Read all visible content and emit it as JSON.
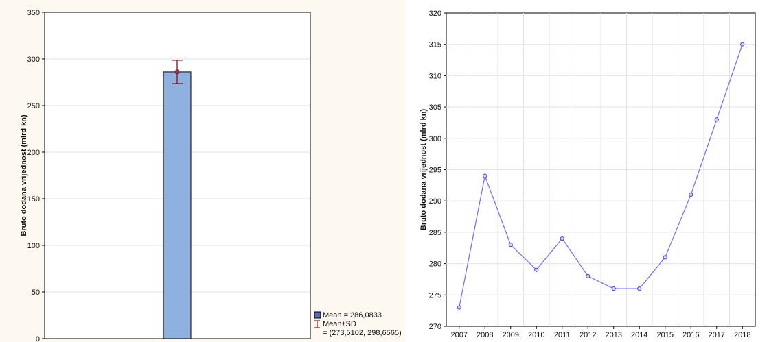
{
  "chart_data": [
    {
      "type": "bar",
      "categories": [
        ""
      ],
      "values": [
        286.0833
      ],
      "error_bars": [
        {
          "low": 273.5102,
          "high": 298.6565
        }
      ],
      "ylabel": "Bruto dodana vrijednost (mlrd kn)",
      "xlabel": "",
      "ylim": [
        0,
        350
      ],
      "yticks": [
        "0",
        "50",
        "100",
        "150",
        "200",
        "250",
        "300",
        "350"
      ],
      "grid": true,
      "legend": {
        "placement": "bottom-right",
        "mean_label": "Mean = 286,0833",
        "sd_label": "Mean±SD",
        "sd_range": "= (273,5102, 298,6565)"
      },
      "colors": {
        "bar": "#8fb1e0",
        "bar_border": "#000000",
        "error": "#8b1a1a",
        "background": "#fdf8f0"
      }
    },
    {
      "type": "line",
      "x": [
        "2007",
        "2008",
        "2009",
        "2010",
        "2011",
        "2012",
        "2013",
        "2014",
        "2015",
        "2016",
        "2017",
        "2018"
      ],
      "values": [
        273,
        294,
        283,
        279,
        284,
        278,
        276,
        276,
        281,
        291,
        303,
        315
      ],
      "ylabel": "Bruto dodana vrijednost (mlrd kn)",
      "xlabel": "",
      "ylim": [
        270,
        320
      ],
      "yticks": [
        "270",
        "275",
        "280",
        "285",
        "290",
        "295",
        "300",
        "305",
        "310",
        "315",
        "320"
      ],
      "grid": true,
      "colors": {
        "line": "#6b6bff",
        "marker": "#3c3cff"
      }
    }
  ]
}
